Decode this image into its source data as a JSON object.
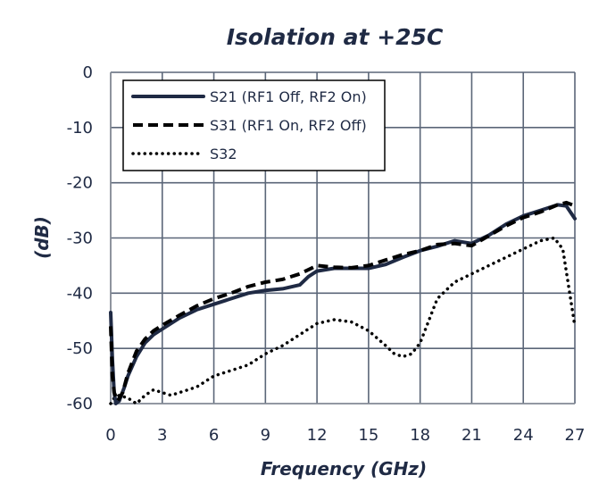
{
  "chart_data": {
    "type": "line",
    "title": "Isolation at +25C",
    "xlabel": "Frequency (GHz)",
    "ylabel": "(dB)",
    "xlim": [
      0,
      27
    ],
    "ylim": [
      -60,
      0
    ],
    "xticks": [
      "0",
      "3",
      "6",
      "9",
      "12",
      "15",
      "18",
      "21",
      "24",
      "27"
    ],
    "yticks": [
      "0",
      "-10",
      "-20",
      "-30",
      "-40",
      "-50",
      "-60"
    ],
    "grid": true,
    "legend_position": "top-left",
    "colors": {
      "grid": "#5b6678",
      "axis": "#8a9099",
      "text": "#1f2a44",
      "s21": "#1f2a44",
      "s31": "#000000",
      "s32": "#000000"
    },
    "series": [
      {
        "name": "S21 (RF1 Off, RF2 On)",
        "style": "solid",
        "x": [
          0,
          0.1,
          0.2,
          0.3,
          0.5,
          0.8,
          1.0,
          1.5,
          2.0,
          2.5,
          3,
          4,
          5,
          6,
          7,
          8,
          9,
          10,
          11,
          11.5,
          12,
          13,
          14,
          15,
          16,
          17,
          18,
          19,
          20,
          21,
          22,
          23,
          24,
          25,
          26,
          26.5,
          27
        ],
        "y": [
          -43.5,
          -52,
          -58,
          -60,
          -59.5,
          -57,
          -55,
          -51.5,
          -49,
          -47.5,
          -46.5,
          -44.5,
          -43,
          -42,
          -41,
          -40,
          -39.5,
          -39.2,
          -38.5,
          -37,
          -36,
          -35.5,
          -35.5,
          -35.5,
          -34.8,
          -33.5,
          -32.3,
          -31.5,
          -30.5,
          -31,
          -29.5,
          -27.5,
          -26,
          -25,
          -24,
          -24.2,
          -26.5
        ]
      },
      {
        "name": "S31 (RF1 On, RF2 Off)",
        "style": "dashed",
        "x": [
          0,
          0.1,
          0.2,
          0.4,
          0.7,
          1.0,
          1.5,
          2.0,
          2.5,
          3,
          4,
          5,
          6,
          7,
          8,
          9,
          10,
          11,
          12,
          13,
          14,
          15,
          16,
          17,
          18,
          19,
          20,
          21,
          22,
          23,
          24,
          25,
          26,
          26.5,
          27
        ],
        "y": [
          -46,
          -55,
          -58,
          -59.5,
          -58,
          -54.5,
          -50.5,
          -48.3,
          -46.8,
          -45.8,
          -44,
          -42.3,
          -41,
          -40,
          -38.8,
          -38,
          -37.5,
          -36.5,
          -35,
          -35.3,
          -35.4,
          -35,
          -34,
          -33,
          -32.3,
          -31.2,
          -31,
          -31.4,
          -29.6,
          -27.8,
          -26.3,
          -25.3,
          -24,
          -23.6,
          -24.2
        ]
      },
      {
        "name": "S32",
        "style": "dotted",
        "x": [
          0,
          0.2,
          0.5,
          1.0,
          1.5,
          2.0,
          2.5,
          3,
          3.5,
          4,
          5,
          6,
          7,
          8,
          9,
          10,
          11,
          12,
          13,
          14,
          15,
          16,
          16.5,
          17,
          17.5,
          18,
          19,
          20,
          21,
          22,
          23,
          24,
          25,
          25.8,
          26.3,
          26.6,
          27
        ],
        "y": [
          -60,
          -59,
          -58.5,
          -59,
          -60,
          -58.5,
          -57.5,
          -58,
          -58.5,
          -58,
          -57,
          -55,
          -54,
          -53,
          -51,
          -49.5,
          -47.5,
          -45.5,
          -44.8,
          -45.2,
          -46.8,
          -49.5,
          -51,
          -51.5,
          -51,
          -49,
          -41,
          -38,
          -36.5,
          -35,
          -33.5,
          -32,
          -30.5,
          -30,
          -32,
          -38,
          -46
        ]
      }
    ]
  }
}
